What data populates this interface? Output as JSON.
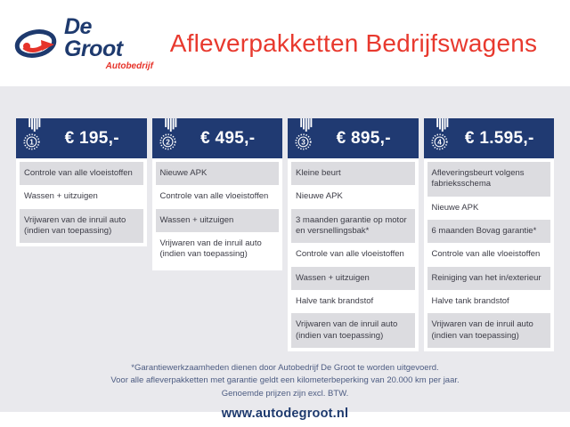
{
  "header": {
    "logo_name": "De Groot",
    "logo_subtitle": "Autobedrijf",
    "title": "Afleverpakketten Bedrijfswagens"
  },
  "packages": [
    {
      "rank": "1",
      "price": "€ 195,-",
      "items": [
        "Controle van alle vloeistoffen",
        "Wassen + uitzuigen",
        "Vrijwaren van de inruil auto (indien van toepassing)"
      ]
    },
    {
      "rank": "2",
      "price": "€ 495,-",
      "items": [
        "Nieuwe APK",
        "Controle van alle vloeistoffen",
        "Wassen + uitzuigen",
        "Vrijwaren van de inruil auto (indien van toepassing)"
      ]
    },
    {
      "rank": "3",
      "price": "€ 895,-",
      "items": [
        "Kleine beurt",
        "Nieuwe APK",
        "3 maanden garantie op motor en versnellingsbak*",
        "Controle van alle vloeistoffen",
        "Wassen + uitzuigen",
        "Halve tank brandstof",
        "Vrijwaren van de inruil auto (indien van toepassing)"
      ]
    },
    {
      "rank": "4",
      "price": "€ 1.595,-",
      "items": [
        "Afleveringsbeurt volgens fabrieksschema",
        "Nieuwe APK",
        "6 maanden Bovag garantie*",
        "Controle van alle vloeistoffen",
        "Reiniging van het in/exterieur",
        "Halve tank brandstof",
        "Vrijwaren van de inruil auto (indien van toepassing)"
      ]
    }
  ],
  "footnotes": [
    "*Garantiewerkzaamheden dienen door Autobedrijf De Groot te worden uitgevoerd.",
    "Voor alle afleverpakketten met garantie geldt een kilometerbeperking van 20.000 km per jaar.",
    "Genoemde prijzen zijn excl. BTW."
  ],
  "website": "www.autodegroot.nl",
  "colors": {
    "navy": "#203a72",
    "red": "#e8392e",
    "page_background": "#e9e9ed",
    "row_alt_gray": "#dcdce0",
    "footnote_blue": "#4d5c82"
  }
}
